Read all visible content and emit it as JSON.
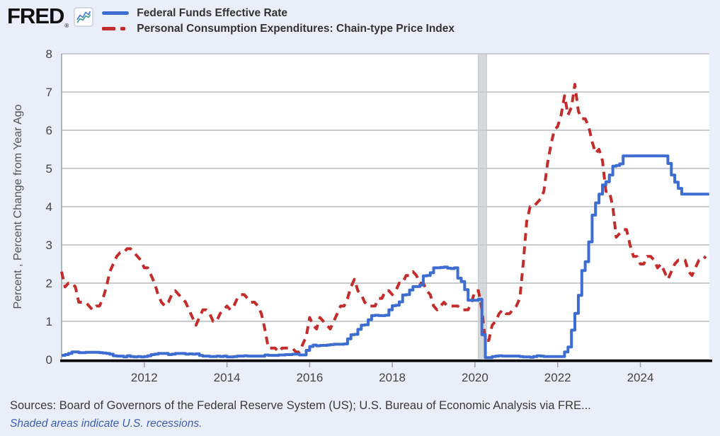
{
  "header": {
    "logo_text": "FRED",
    "logo_registered": "®"
  },
  "legend": [
    {
      "label": "Federal Funds Effective Rate",
      "color": "#3d6dd1",
      "style": "solid"
    },
    {
      "label": "Personal Consumption Expenditures: Chain-type Price Index",
      "color": "#c42c2c",
      "style": "dashed"
    }
  ],
  "footer": {
    "sources": "Sources: Board of Governors of the Federal Reserve System (US); U.S. Bureau of Economic Analysis via FRE...",
    "note": "Shaded areas indicate U.S. recessions."
  },
  "chart_data": {
    "type": "line",
    "title": "",
    "xlabel": "",
    "ylabel": "Percent , Percent Change from Year Ago",
    "ylim": [
      0,
      8
    ],
    "xlim": [
      2010.0,
      2025.67
    ],
    "yticks": [
      0,
      1,
      2,
      3,
      4,
      5,
      6,
      7,
      8
    ],
    "xticks": [
      2012,
      2014,
      2016,
      2018,
      2020,
      2022,
      2024
    ],
    "grid": "horizontal",
    "legend_position": "top",
    "recession_bands": [
      {
        "start": 2020.08,
        "end": 2020.28
      }
    ],
    "colors": {
      "background": "#e9eef8",
      "plot_background": "#ffffff",
      "grid": "#c9cccf",
      "recession_band": "#d7d9dc",
      "recession_band_edge": "#c0c3c7",
      "axis": "#000000",
      "tick_label": "#444444",
      "axis_label": "#555555"
    },
    "series": [
      {
        "id": "ffr",
        "name": "Federal Funds Effective Rate",
        "color": "#3d6dd1",
        "line_style": "solid",
        "interpolation": "step",
        "x_start": 2010.0,
        "x_step": 0.0833333,
        "values": [
          0.11,
          0.13,
          0.16,
          0.2,
          0.2,
          0.18,
          0.18,
          0.19,
          0.19,
          0.19,
          0.19,
          0.18,
          0.17,
          0.16,
          0.14,
          0.1,
          0.09,
          0.09,
          0.07,
          0.1,
          0.08,
          0.07,
          0.08,
          0.07,
          0.08,
          0.1,
          0.13,
          0.14,
          0.16,
          0.16,
          0.16,
          0.13,
          0.14,
          0.16,
          0.16,
          0.16,
          0.14,
          0.15,
          0.14,
          0.15,
          0.11,
          0.09,
          0.09,
          0.08,
          0.08,
          0.09,
          0.08,
          0.09,
          0.07,
          0.07,
          0.08,
          0.09,
          0.09,
          0.1,
          0.09,
          0.09,
          0.09,
          0.09,
          0.09,
          0.12,
          0.11,
          0.11,
          0.11,
          0.12,
          0.12,
          0.13,
          0.13,
          0.14,
          0.14,
          0.12,
          0.12,
          0.24,
          0.34,
          0.38,
          0.36,
          0.37,
          0.37,
          0.38,
          0.39,
          0.4,
          0.4,
          0.4,
          0.41,
          0.54,
          0.65,
          0.66,
          0.79,
          0.9,
          0.91,
          1.04,
          1.15,
          1.16,
          1.15,
          1.15,
          1.16,
          1.3,
          1.41,
          1.42,
          1.51,
          1.69,
          1.7,
          1.82,
          1.91,
          1.91,
          1.95,
          2.19,
          2.2,
          2.27,
          2.4,
          2.4,
          2.41,
          2.42,
          2.39,
          2.38,
          2.4,
          2.13,
          2.04,
          1.83,
          1.55,
          1.55,
          1.55,
          1.58,
          0.65,
          0.05,
          0.05,
          0.08,
          0.09,
          0.1,
          0.09,
          0.09,
          0.09,
          0.09,
          0.09,
          0.08,
          0.07,
          0.07,
          0.06,
          0.08,
          0.1,
          0.09,
          0.08,
          0.08,
          0.08,
          0.08,
          0.08,
          0.08,
          0.2,
          0.33,
          0.77,
          1.21,
          1.68,
          2.33,
          2.56,
          3.08,
          3.78,
          4.1,
          4.33,
          4.57,
          4.65,
          4.83,
          5.06,
          5.08,
          5.12,
          5.33,
          5.33,
          5.33,
          5.33,
          5.33,
          5.33,
          5.33,
          5.33,
          5.33,
          5.33,
          5.33,
          5.33,
          5.33,
          5.13,
          4.83,
          4.64,
          4.48,
          4.33,
          4.33,
          4.33,
          4.33,
          4.33,
          4.33,
          4.33,
          4.33,
          4.33
        ]
      },
      {
        "id": "pce",
        "name": "Personal Consumption Expenditures: Chain-type Price Index",
        "color": "#c42c2c",
        "line_style": "dashed",
        "interpolation": "linear",
        "x_start": 2010.0,
        "x_step": 0.0833333,
        "values": [
          2.3,
          1.9,
          2.0,
          2.0,
          1.9,
          1.5,
          1.5,
          1.5,
          1.4,
          1.3,
          1.4,
          1.4,
          1.6,
          1.9,
          2.3,
          2.5,
          2.7,
          2.8,
          2.8,
          2.9,
          2.9,
          2.8,
          2.7,
          2.6,
          2.4,
          2.4,
          2.2,
          2.0,
          1.7,
          1.5,
          1.4,
          1.5,
          1.7,
          1.8,
          1.7,
          1.6,
          1.5,
          1.3,
          1.1,
          0.9,
          1.1,
          1.3,
          1.3,
          1.2,
          1.0,
          1.0,
          1.2,
          1.3,
          1.4,
          1.3,
          1.4,
          1.6,
          1.7,
          1.7,
          1.6,
          1.5,
          1.5,
          1.4,
          1.2,
          0.8,
          0.3,
          0.3,
          0.3,
          0.2,
          0.3,
          0.3,
          0.3,
          0.3,
          0.2,
          0.2,
          0.4,
          0.6,
          1.1,
          0.9,
          0.8,
          1.1,
          1.0,
          0.9,
          0.8,
          1.0,
          1.2,
          1.4,
          1.4,
          1.6,
          1.9,
          2.1,
          1.8,
          1.7,
          1.5,
          1.4,
          1.4,
          1.4,
          1.6,
          1.6,
          1.8,
          1.8,
          1.7,
          1.8,
          2.0,
          2.0,
          2.2,
          2.2,
          2.3,
          2.2,
          2.0,
          2.0,
          1.8,
          1.7,
          1.4,
          1.3,
          1.4,
          1.5,
          1.4,
          1.4,
          1.4,
          1.4,
          1.3,
          1.3,
          1.3,
          1.5,
          1.8,
          1.8,
          1.3,
          0.5,
          0.5,
          0.9,
          1.0,
          1.2,
          1.3,
          1.2,
          1.2,
          1.3,
          1.4,
          1.6,
          2.5,
          3.6,
          4.0,
          4.0,
          4.1,
          4.2,
          4.4,
          5.1,
          5.6,
          6.0,
          6.1,
          6.4,
          6.9,
          6.4,
          6.6,
          7.2,
          6.5,
          6.3,
          6.3,
          6.1,
          5.7,
          5.4,
          5.5,
          5.2,
          4.4,
          4.4,
          4.0,
          3.2,
          3.3,
          3.4,
          3.4,
          3.0,
          2.7,
          2.7,
          2.5,
          2.5,
          2.7,
          2.7,
          2.6,
          2.4,
          2.5,
          2.3,
          2.1,
          2.3,
          2.5,
          2.6,
          2.6,
          2.6,
          2.3,
          2.2,
          2.4,
          2.6,
          2.6,
          2.7
        ]
      }
    ]
  }
}
